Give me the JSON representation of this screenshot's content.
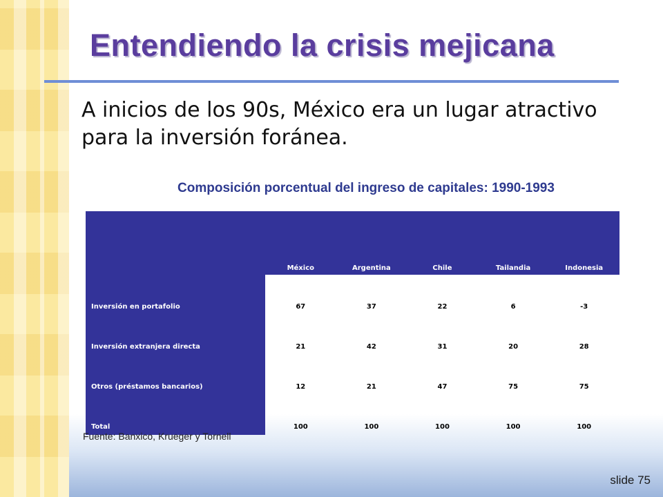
{
  "slide": {
    "title": "Entendiendo la crisis mejicana",
    "intro": "A inicios de los 90s, México era un lugar atractivo para la inversión foránea.",
    "slide_number": "slide 75",
    "source": "Fuente: Banxico, Krueger y Tornell"
  },
  "colors": {
    "title": "#5a3d9e",
    "table_header": "#333399",
    "rule": "#6f8ed6"
  },
  "chart_data": {
    "type": "table",
    "title": "Composición porcentual del ingreso de capitales: 1990-1993",
    "columns": [
      "México",
      "Argentina",
      "Chile",
      "Tailandia",
      "Indonesia"
    ],
    "rows": [
      {
        "label": "Inversión en portafolio",
        "values": [
          "67",
          "37",
          "22",
          "6",
          "-3"
        ]
      },
      {
        "label": "Inversión extranjera directa",
        "values": [
          "21",
          "42",
          "31",
          "20",
          "28"
        ]
      },
      {
        "label": "Otros (préstamos bancarios)",
        "values": [
          "12",
          "21",
          "47",
          "75",
          "75"
        ]
      },
      {
        "label": "Total",
        "values": [
          "100",
          "100",
          "100",
          "100",
          "100"
        ]
      }
    ]
  }
}
